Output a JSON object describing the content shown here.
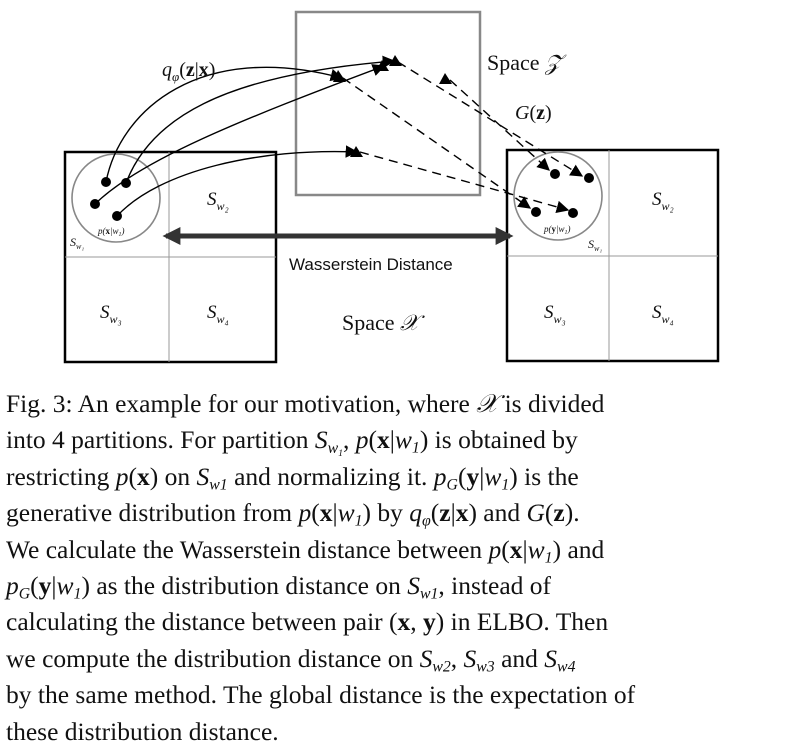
{
  "figure": {
    "space_z_label": "Space 𝒵",
    "space_x_label": "Space 𝒳",
    "encoder_label": "q_φ(z|x)",
    "decoder_label": "G(z)",
    "wasserstein_label": "Wasserstein Distance",
    "left_grid": {
      "partitions": [
        {
          "id": "w1",
          "label": "S_{w1}"
        },
        {
          "id": "w2",
          "label": "S_{w2}"
        },
        {
          "id": "w3",
          "label": "S_{w3}"
        },
        {
          "id": "w4",
          "label": "S_{w4}"
        }
      ],
      "circle_label": "p(x|w1)"
    },
    "right_grid": {
      "partitions": [
        {
          "id": "w1",
          "label": "S_{w1}"
        },
        {
          "id": "w2",
          "label": "S_{w2}"
        },
        {
          "id": "w3",
          "label": "S_{w3}"
        },
        {
          "id": "w4",
          "label": "S_{w4}"
        }
      ],
      "circle_label": "p(y|w1)"
    }
  },
  "caption": {
    "lines": [
      "Fig. 3: An example for our motivation, where 𝒳 is divided",
      "into 4 partitions. For partition S_{w1}, p(x|w1) is obtained by",
      "restricting p(x) on S_{w1} and normalizing it. p_G(y|w1) is the",
      "generative distribution from p(x|w1) by q_φ(z|x) and G(z).",
      "We calculate the Wasserstein distance between p(x|w1) and",
      "p_G(y|w1) as the distribution distance on S_{w1}, instead of",
      "calculating the distance between pair (x, y) in ELBO. Then",
      "we compute the distribution distance on S_{w2}, S_{w3} and S_{w4}",
      "by the same method. The global distance is the expectation of",
      "these distribution distance."
    ]
  }
}
